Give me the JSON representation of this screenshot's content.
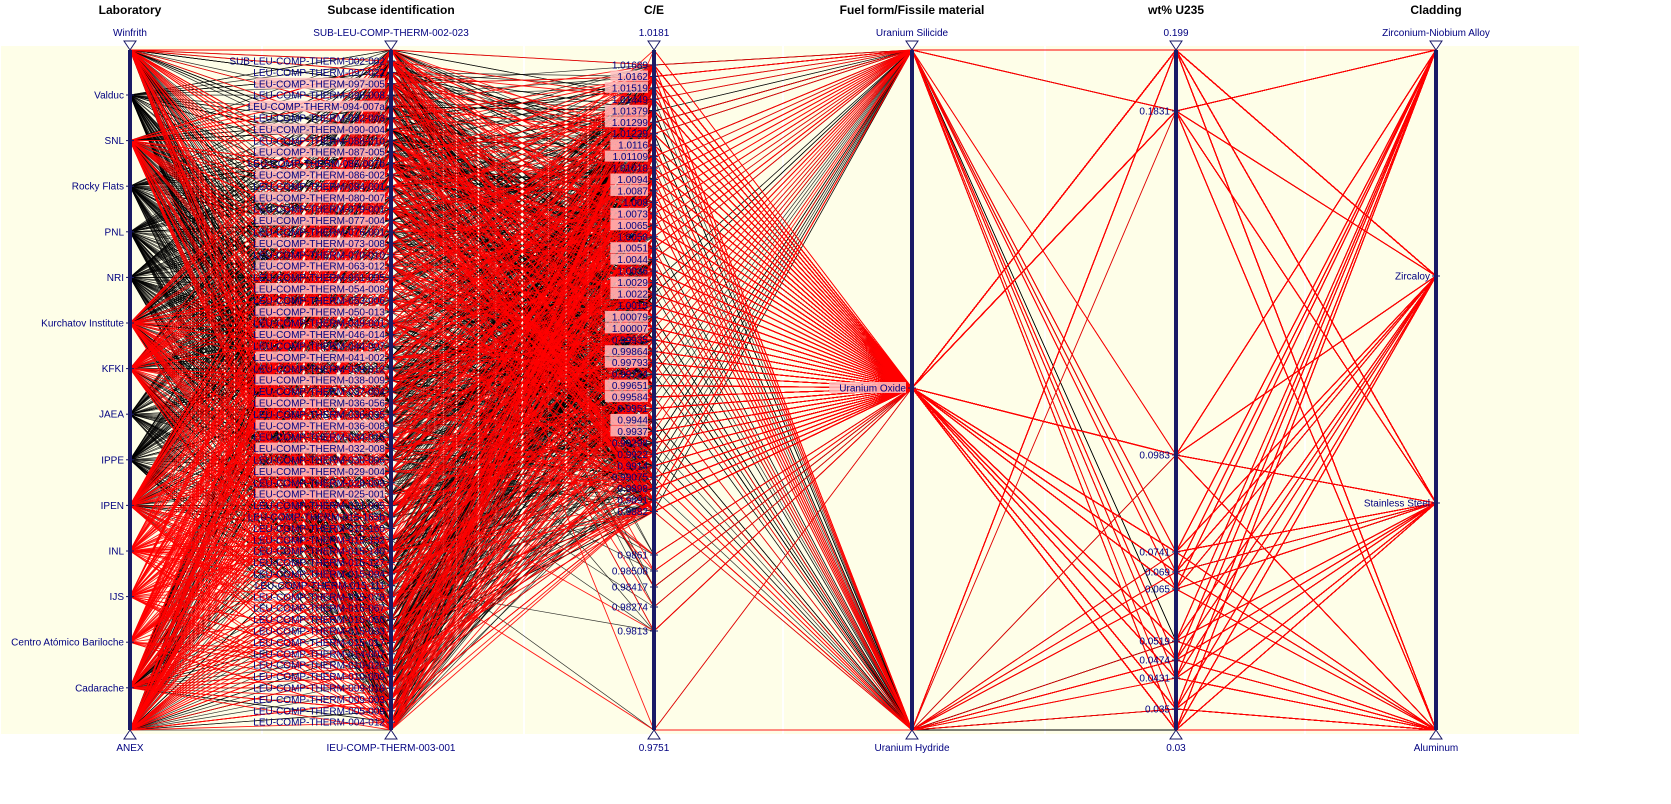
{
  "colors": {
    "background": "#ffffff",
    "panel": "#fefee8",
    "axis": "#1a1a66",
    "highlight": "#ff0000",
    "line": "#000000",
    "label_bg_pink": "#ffc0c0",
    "label_text": "#000080"
  },
  "chart_data": {
    "type": "parallel_coordinates",
    "axes": [
      {
        "title": "Laboratory",
        "top_label": "Winfrith",
        "bottom_label": "ANEX",
        "ticks": [
          "Valduc",
          "SNL",
          "Rocky Flats",
          "PNL",
          "NRI",
          "Kurchatov Institute",
          "KFKI",
          "JAEA",
          "IPPE",
          "IPEN",
          "INL",
          "IJS",
          "Centro Atómico Bariloche",
          "Cadarache"
        ]
      },
      {
        "title": "Subcase identification",
        "top_label": "SUB-LEU-COMP-THERM-002-023",
        "bottom_label": "IEU-COMP-THERM-003-001",
        "ticks": [
          "SUB-LEU-COMP-THERM-002-002",
          "LEU-COMP-THERM-097-022",
          "LEU-COMP-THERM-097-005",
          "LEU-COMP-THERM-096-008",
          "LEU-COMP-THERM-094-007a",
          "LEU-COMP-THERM-092-003",
          "LEU-COMP-THERM-090-004",
          "LEU-COMP-THERM-088-010",
          "LEU-COMP-THERM-087-005",
          "LEU-COMP-THERM-086-007b",
          "LEU-COMP-THERM-086-002",
          "LEU-COMP-THERM-084-001",
          "LEU-COMP-THERM-080-007",
          "LEU-COMP-THERM-079-001",
          "LEU-COMP-THERM-077-004",
          "LEU-COMP-THERM-076-001",
          "LEU-COMP-THERM-073-008",
          "LEU-COMP-THERM-070-010",
          "LEU-COMP-THERM-063-012",
          "LEU-COMP-THERM-061-005",
          "LEU-COMP-THERM-054-008",
          "LEU-COMP-THERM-053-006",
          "LEU-COMP-THERM-050-013",
          "LEU-COMP-THERM-049-001",
          "LEU-COMP-THERM-046-014",
          "LEU-COMP-THERM-044-007",
          "LEU-COMP-THERM-041-002",
          "LEU-COMP-THERM-039-012",
          "LEU-COMP-THERM-038-009",
          "LEU-COMP-THERM-037-004",
          "LEU-COMP-THERM-036-056",
          "LEU-COMP-THERM-036-035",
          "LEU-COMP-THERM-036-008",
          "LEU-COMP-THERM-034-015",
          "LEU-COMP-THERM-032-008",
          "LEU-COMP-THERM-030-006",
          "LEU-COMP-THERM-029-004",
          "LEU-COMP-THERM-028-008",
          "LEU-COMP-THERM-025-001",
          "LEU-COMP-THERM-021-005",
          "LEU-COMP-THERM-015-165b",
          "LEU-COMP-THERM-015-160",
          "LEU-COMP-THERM-015-152",
          "LEU-COMP-THERM-015-140",
          "LEU-COMP-THERM-015-127",
          "LEU-COMP-THERM-015-094",
          "LEU-COMP-THERM-015-111",
          "LEU-COMP-THERM-015-078",
          "LEU-COMP-THERM-015-067",
          "LEU-COMP-THERM-015-050",
          "LEU-COMP-THERM-015-033",
          "LEU-COMP-THERM-015-017",
          "LEU-COMP-THERM-014-007",
          "LEU-COMP-THERM-010-026",
          "LEU-COMP-THERM-010-009",
          "LEU-COMP-THERM-009-019",
          "LEU-COMP-THERM-009-003",
          "LEU-COMP-THERM-005-009",
          "LEU-COMP-THERM-004-012"
        ]
      },
      {
        "title": "C/E",
        "top_label": "1.0181",
        "bottom_label": "0.9751",
        "ticks": [
          "1.01689",
          "1.0162",
          "1.01519",
          "1.01449",
          "1.01379",
          "1.01299",
          "1.01229",
          "1.0116",
          "1.01109",
          "1.01018",
          "1.0094",
          "1.0087",
          "1.008",
          "1.0073",
          "1.0065",
          "1.0058",
          "1.0051",
          "1.0044",
          "1.0036",
          "1.0029",
          "1.0022",
          "1.0015",
          "1.00079",
          "1.00007",
          "0.99935",
          "0.99864",
          "0.99793",
          "0.99724",
          "0.99651",
          "0.99584",
          "0.9951",
          "0.9944",
          "0.9937",
          "0.99298",
          "0.9922",
          "0.9914",
          "0.99075",
          "0.9898",
          "0.9891",
          "0.9882",
          "0.9861",
          "0.98508",
          "0.98417",
          "0.98274",
          "0.9813"
        ]
      },
      {
        "title": "Fuel form/Fissile material",
        "top_label": "Uranium Silicide",
        "bottom_label": "Uranium Hydride",
        "ticks": [
          "Uranium Oxide"
        ]
      },
      {
        "title": "wt% U235",
        "top_label": "0.199",
        "bottom_label": "0.03",
        "ticks": [
          "0.1831",
          "0.0983",
          "0.0741",
          "0.069",
          "0.065",
          "0.0519",
          "0.0474",
          "0.0431",
          "0.035"
        ]
      },
      {
        "title": "Cladding",
        "top_label": "Zirconium-Niobium Alloy",
        "bottom_label": "Aluminum",
        "ticks": [
          "Zircaloy",
          "Stainless Steel"
        ]
      }
    ],
    "selection_color": "red"
  }
}
